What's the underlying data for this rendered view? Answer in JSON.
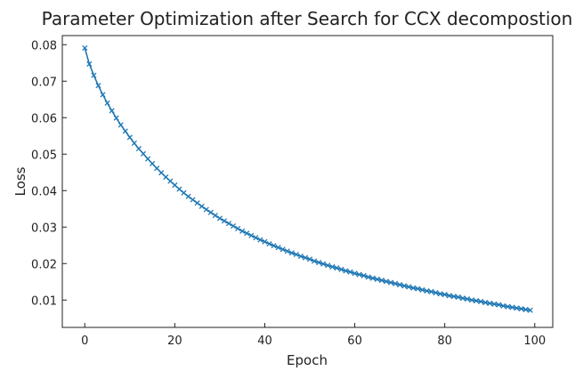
{
  "chart_data": {
    "type": "line",
    "title": "Parameter Optimization after Search for CCX decompostion",
    "xlabel": "Epoch",
    "ylabel": "Loss",
    "xlim": [
      -5,
      104
    ],
    "ylim": [
      0.0025,
      0.0825
    ],
    "xticks": [
      0,
      20,
      40,
      60,
      80,
      100
    ],
    "yticks": [
      0.01,
      0.02,
      0.03,
      0.04,
      0.05,
      0.06,
      0.07,
      0.08
    ],
    "xtick_labels": [
      "0",
      "20",
      "40",
      "60",
      "80",
      "100"
    ],
    "ytick_labels": [
      "0.01",
      "0.02",
      "0.03",
      "0.04",
      "0.05",
      "0.06",
      "0.07",
      "0.08"
    ],
    "grid": false,
    "marker": "x",
    "series": [
      {
        "color": "#1f77b4",
        "x": [
          0,
          1,
          2,
          3,
          4,
          5,
          6,
          7,
          8,
          9,
          10,
          11,
          12,
          13,
          14,
          15,
          16,
          17,
          18,
          19,
          20,
          21,
          22,
          23,
          24,
          25,
          26,
          27,
          28,
          29,
          30,
          31,
          32,
          33,
          34,
          35,
          36,
          37,
          38,
          39,
          40,
          41,
          42,
          43,
          44,
          45,
          46,
          47,
          48,
          49,
          50,
          51,
          52,
          53,
          54,
          55,
          56,
          57,
          58,
          59,
          60,
          61,
          62,
          63,
          64,
          65,
          66,
          67,
          68,
          69,
          70,
          71,
          72,
          73,
          74,
          75,
          76,
          77,
          78,
          79,
          80,
          81,
          82,
          83,
          84,
          85,
          86,
          87,
          88,
          89,
          90,
          91,
          92,
          93,
          94,
          95,
          96,
          97,
          98,
          99
        ],
        "y": [
          0.0791,
          0.0747,
          0.0716,
          0.0688,
          0.0663,
          0.064,
          0.0619,
          0.0599,
          0.058,
          0.0563,
          0.0546,
          0.053,
          0.0515,
          0.0501,
          0.0487,
          0.0474,
          0.0461,
          0.0449,
          0.0437,
          0.0426,
          0.0415,
          0.0404,
          0.0394,
          0.0384,
          0.0375,
          0.0366,
          0.0357,
          0.0348,
          0.034,
          0.0332,
          0.0324,
          0.0317,
          0.031,
          0.0303,
          0.0296,
          0.0289,
          0.0283,
          0.0277,
          0.0271,
          0.0265,
          0.026,
          0.0254,
          0.0249,
          0.0244,
          0.0239,
          0.0234,
          0.0229,
          0.0225,
          0.022,
          0.0216,
          0.0212,
          0.0207,
          0.0203,
          0.0199,
          0.0195,
          0.0191,
          0.0188,
          0.0184,
          0.018,
          0.0177,
          0.0173,
          0.017,
          0.0167,
          0.0163,
          0.016,
          0.0157,
          0.0154,
          0.0151,
          0.0148,
          0.0145,
          0.0142,
          0.0139,
          0.0136,
          0.0133,
          0.0131,
          0.0128,
          0.0125,
          0.0123,
          0.012,
          0.0117,
          0.0115,
          0.0112,
          0.011,
          0.0108,
          0.0105,
          0.0103,
          0.01,
          0.0098,
          0.0096,
          0.0093,
          0.0091,
          0.0089,
          0.0087,
          0.0084,
          0.0082,
          0.008,
          0.0078,
          0.0076,
          0.0074,
          0.0072
        ]
      }
    ]
  }
}
